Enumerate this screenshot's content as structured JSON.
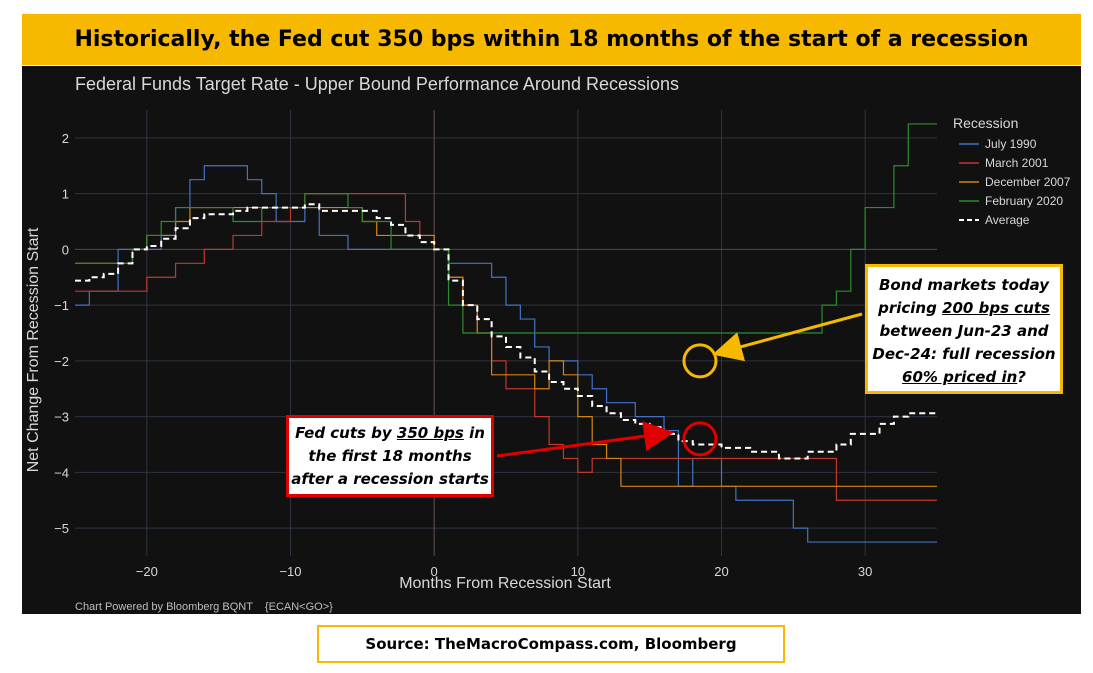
{
  "headline": "Historically, the Fed cut 350 bps within 18 months of the start of a recession",
  "source": "Source: TheMacroCompass.com, Bloomberg",
  "footer": "Chart Powered by Bloomberg BQNT    {ECAN<GO>}",
  "callouts": {
    "bond": {
      "l1": "Bond markets today",
      "l2a": "pricing ",
      "l2b": "200 bps cuts",
      "l3": "between Jun-23 and",
      "l4": "Dec-24: full recession",
      "l5a": "60% priced in",
      "l5b": "?"
    },
    "fed": {
      "l1a": "Fed cuts by ",
      "l1b": "350 bps",
      "l1c": " in",
      "l2": "the first 18 months",
      "l3": "after a recession starts"
    }
  },
  "colors": {
    "highlight_yellow": "#f7b800",
    "highlight_red": "#e00000"
  },
  "chart_data": {
    "type": "line",
    "title": "Federal Funds Target Rate - Upper Bound Performance Around Recessions",
    "xlabel": "Months From Recession Start",
    "ylabel": "Net Change From Recession Start",
    "xlim": [
      -25,
      35
    ],
    "ylim": [
      -5.5,
      2.5
    ],
    "x_ticks": [
      -20,
      -10,
      0,
      10,
      20,
      30
    ],
    "y_ticks": [
      2,
      1,
      0,
      -1,
      -2,
      -3,
      -4,
      -5
    ],
    "grid": true,
    "legend_title": "Recession",
    "legend_position": "top-right",
    "annotations": [
      {
        "type": "circle",
        "x": 18.5,
        "y": -2,
        "color": "#f7b800"
      },
      {
        "type": "circle",
        "x": 18.5,
        "y": -3.4,
        "color": "#e00000"
      }
    ],
    "series": [
      {
        "name": "July 1990",
        "color": "#4472c4",
        "step": true,
        "points": [
          [
            -25,
            -1
          ],
          [
            -24,
            -0.75
          ],
          [
            -22,
            0
          ],
          [
            -19,
            0.25
          ],
          [
            -18,
            0.75
          ],
          [
            -17,
            1.25
          ],
          [
            -16,
            1.5
          ],
          [
            -13,
            1.25
          ],
          [
            -12,
            1
          ],
          [
            -11,
            0.5
          ],
          [
            -9,
            0.75
          ],
          [
            -8,
            0.25
          ],
          [
            -6,
            0
          ],
          [
            0,
            0
          ],
          [
            1,
            -0.25
          ],
          [
            3,
            -0.25
          ],
          [
            4,
            -0.5
          ],
          [
            5,
            -1
          ],
          [
            6,
            -1.25
          ],
          [
            7,
            -1.75
          ],
          [
            8,
            -2
          ],
          [
            10,
            -2.25
          ],
          [
            11,
            -2.5
          ],
          [
            12,
            -2.75
          ],
          [
            14,
            -3
          ],
          [
            16,
            -3.25
          ],
          [
            17,
            -4.25
          ],
          [
            18,
            -3.75
          ],
          [
            20,
            -4.25
          ],
          [
            21,
            -4.5
          ],
          [
            25,
            -5
          ],
          [
            26,
            -5.25
          ],
          [
            35,
            -5.25
          ]
        ]
      },
      {
        "name": "March 2001",
        "color": "#c0392b",
        "step": true,
        "points": [
          [
            -25,
            -0.75
          ],
          [
            -22,
            -0.75
          ],
          [
            -20,
            -0.5
          ],
          [
            -18,
            -0.25
          ],
          [
            -16,
            0
          ],
          [
            -14,
            0.25
          ],
          [
            -12,
            0.5
          ],
          [
            -10,
            0.75
          ],
          [
            -9,
            1
          ],
          [
            -2,
            0.5
          ],
          [
            -1,
            0.25
          ],
          [
            0,
            0
          ],
          [
            1,
            -0.5
          ],
          [
            2,
            -1
          ],
          [
            3,
            -1.5
          ],
          [
            4,
            -2
          ],
          [
            5,
            -2.5
          ],
          [
            7,
            -3
          ],
          [
            8,
            -3.5
          ],
          [
            9,
            -3.75
          ],
          [
            10,
            -4
          ],
          [
            11,
            -3.75
          ],
          [
            20,
            -3.75
          ],
          [
            28,
            -4.5
          ],
          [
            35,
            -4.5
          ]
        ]
      },
      {
        "name": "December 2007",
        "color": "#d4850f",
        "step": true,
        "points": [
          [
            -25,
            -0.25
          ],
          [
            -21,
            0
          ],
          [
            -20,
            0.25
          ],
          [
            -18,
            0.5
          ],
          [
            -17,
            0.75
          ],
          [
            -5,
            0.5
          ],
          [
            -4,
            0.25
          ],
          [
            0,
            0
          ],
          [
            1,
            -0.5
          ],
          [
            2,
            -1
          ],
          [
            3,
            -1.5
          ],
          [
            4,
            -2.25
          ],
          [
            7,
            -2.5
          ],
          [
            8,
            -2
          ],
          [
            9,
            -2.25
          ],
          [
            10,
            -3
          ],
          [
            11,
            -3.5
          ],
          [
            12,
            -3.75
          ],
          [
            13,
            -4.25
          ],
          [
            35,
            -4.25
          ]
        ]
      },
      {
        "name": "February 2020",
        "color": "#2e8b2e",
        "step": true,
        "points": [
          [
            -25,
            -0.25
          ],
          [
            -21,
            0
          ],
          [
            -20,
            0.25
          ],
          [
            -19,
            0.5
          ],
          [
            -18,
            0.75
          ],
          [
            -15,
            0.75
          ],
          [
            -14,
            0.5
          ],
          [
            -12,
            0.75
          ],
          [
            -9,
            1
          ],
          [
            -6,
            0.75
          ],
          [
            -5,
            0.5
          ],
          [
            -3,
            0
          ],
          [
            0,
            0
          ],
          [
            1,
            -1
          ],
          [
            2,
            -1.5
          ],
          [
            25,
            -1.5
          ],
          [
            27,
            -1
          ],
          [
            28,
            -0.75
          ],
          [
            29,
            0
          ],
          [
            30,
            0.75
          ],
          [
            32,
            1.5
          ],
          [
            33,
            2.25
          ],
          [
            35,
            2.25
          ]
        ]
      },
      {
        "name": "Average",
        "color": "#ffffff",
        "dashed": true,
        "step": true,
        "points": [
          [
            -25,
            -0.56
          ],
          [
            -24,
            -0.5
          ],
          [
            -23,
            -0.44
          ],
          [
            -22,
            -0.25
          ],
          [
            -21,
            0
          ],
          [
            -20,
            0.06
          ],
          [
            -19,
            0.19
          ],
          [
            -18,
            0.38
          ],
          [
            -17,
            0.56
          ],
          [
            -16,
            0.63
          ],
          [
            -14,
            0.69
          ],
          [
            -13,
            0.75
          ],
          [
            -10,
            0.75
          ],
          [
            -9,
            0.81
          ],
          [
            -8,
            0.69
          ],
          [
            -4,
            0.56
          ],
          [
            -3,
            0.44
          ],
          [
            -2,
            0.25
          ],
          [
            -1,
            0.13
          ],
          [
            0,
            0
          ],
          [
            1,
            -0.56
          ],
          [
            2,
            -1
          ],
          [
            3,
            -1.25
          ],
          [
            4,
            -1.56
          ],
          [
            5,
            -1.75
          ],
          [
            6,
            -1.94
          ],
          [
            7,
            -2.19
          ],
          [
            8,
            -2.38
          ],
          [
            9,
            -2.5
          ],
          [
            10,
            -2.63
          ],
          [
            11,
            -2.81
          ],
          [
            12,
            -2.94
          ],
          [
            13,
            -3.06
          ],
          [
            14,
            -3.13
          ],
          [
            15,
            -3.19
          ],
          [
            16,
            -3.31
          ],
          [
            17,
            -3.44
          ],
          [
            18,
            -3.5
          ],
          [
            20,
            -3.56
          ],
          [
            22,
            -3.63
          ],
          [
            24,
            -3.75
          ],
          [
            26,
            -3.63
          ],
          [
            28,
            -3.5
          ],
          [
            29,
            -3.31
          ],
          [
            31,
            -3.13
          ],
          [
            32,
            -3
          ],
          [
            33,
            -2.94
          ],
          [
            35,
            -2.94
          ]
        ]
      }
    ]
  }
}
